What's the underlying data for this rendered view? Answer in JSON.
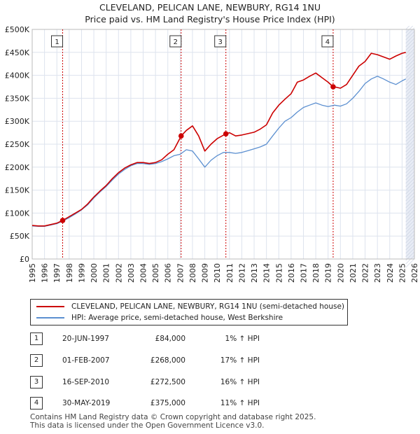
{
  "title_line1": "CLEVELAND, PELICAN LANE, NEWBURY, RG14 1NU",
  "title_line2": "Price paid vs. HM Land Registry's House Price Index (HPI)",
  "colors": {
    "property": "#cc0000",
    "hpi": "#5b8fd0",
    "sale_line": "#cc0000",
    "grid": "#dde3ee",
    "plot_bg": "#ffffff"
  },
  "chart_data": {
    "type": "line",
    "title": "CLEVELAND, PELICAN LANE, NEWBURY, RG14 1NU",
    "subtitle": "Price paid vs. HM Land Registry's House Price Index (HPI)",
    "xlabel": "",
    "ylabel": "",
    "xlim": [
      1995,
      2026
    ],
    "ylim": [
      0,
      500000
    ],
    "x_ticks": [
      1995,
      1996,
      1997,
      1998,
      1999,
      2000,
      2001,
      2002,
      2003,
      2004,
      2005,
      2006,
      2007,
      2008,
      2009,
      2010,
      2011,
      2012,
      2013,
      2014,
      2015,
      2016,
      2017,
      2018,
      2019,
      2020,
      2021,
      2022,
      2023,
      2024,
      2025,
      2026
    ],
    "y_ticks": [
      0,
      50000,
      100000,
      150000,
      200000,
      250000,
      300000,
      350000,
      400000,
      450000,
      500000
    ],
    "y_tick_labels": [
      "£0",
      "£50K",
      "£100K",
      "£150K",
      "£200K",
      "£250K",
      "£300K",
      "£350K",
      "£400K",
      "£450K",
      "£500K"
    ],
    "grid": true,
    "legend_position": "below",
    "series": [
      {
        "name": "CLEVELAND, PELICAN LANE, NEWBURY, RG14 1NU (semi-detached house)",
        "x": [
          1995.0,
          1995.5,
          1996.0,
          1996.5,
          1997.0,
          1997.47,
          1998.0,
          1998.5,
          1999.0,
          1999.5,
          2000.0,
          2000.5,
          2001.0,
          2001.5,
          2002.0,
          2002.5,
          2003.0,
          2003.5,
          2004.0,
          2004.5,
          2005.0,
          2005.5,
          2006.0,
          2006.5,
          2007.08,
          2007.5,
          2008.0,
          2008.5,
          2009.0,
          2009.5,
          2010.0,
          2010.71,
          2011.0,
          2011.5,
          2012.0,
          2012.5,
          2013.0,
          2013.5,
          2014.0,
          2014.5,
          2015.0,
          2015.5,
          2016.0,
          2016.5,
          2017.0,
          2017.5,
          2018.0,
          2018.5,
          2019.0,
          2019.41,
          2019.5,
          2020.0,
          2020.5,
          2021.0,
          2021.5,
          2022.0,
          2022.5,
          2023.0,
          2023.5,
          2024.0,
          2024.5,
          2025.0,
          2025.3
        ],
        "values": [
          73000,
          72000,
          72000,
          75000,
          78000,
          84000,
          92000,
          100000,
          108000,
          120000,
          135000,
          148000,
          160000,
          175000,
          188000,
          198000,
          205000,
          210000,
          210000,
          208000,
          210000,
          216000,
          228000,
          238000,
          268000,
          280000,
          290000,
          268000,
          235000,
          250000,
          262000,
          272500,
          275000,
          268000,
          270000,
          273000,
          276000,
          283000,
          292000,
          318000,
          335000,
          348000,
          360000,
          385000,
          390000,
          398000,
          405000,
          395000,
          385000,
          375000,
          375000,
          372000,
          380000,
          400000,
          420000,
          430000,
          448000,
          445000,
          440000,
          435000,
          442000,
          448000,
          450000
        ]
      },
      {
        "name": "HPI: Average price, semi-detached house, West Berkshire",
        "x": [
          1995.0,
          1995.5,
          1996.0,
          1996.5,
          1997.0,
          1997.5,
          1998.0,
          1998.5,
          1999.0,
          1999.5,
          2000.0,
          2000.5,
          2001.0,
          2001.5,
          2002.0,
          2002.5,
          2003.0,
          2003.5,
          2004.0,
          2004.5,
          2005.0,
          2005.5,
          2006.0,
          2006.5,
          2007.0,
          2007.5,
          2008.0,
          2008.5,
          2009.0,
          2009.5,
          2010.0,
          2010.5,
          2011.0,
          2011.5,
          2012.0,
          2012.5,
          2013.0,
          2013.5,
          2014.0,
          2014.5,
          2015.0,
          2015.5,
          2016.0,
          2016.5,
          2017.0,
          2017.5,
          2018.0,
          2018.5,
          2019.0,
          2019.5,
          2020.0,
          2020.5,
          2021.0,
          2021.5,
          2022.0,
          2022.5,
          2023.0,
          2023.5,
          2024.0,
          2024.5,
          2025.0,
          2025.3
        ],
        "values": [
          72000,
          71000,
          71000,
          74000,
          77000,
          83000,
          90000,
          98000,
          107000,
          118000,
          133000,
          146000,
          158000,
          172000,
          185000,
          195000,
          203000,
          208000,
          208000,
          206000,
          208000,
          212000,
          218000,
          225000,
          228000,
          238000,
          235000,
          218000,
          200000,
          215000,
          225000,
          232000,
          232000,
          230000,
          232000,
          236000,
          240000,
          244000,
          250000,
          268000,
          285000,
          300000,
          308000,
          320000,
          330000,
          335000,
          340000,
          335000,
          332000,
          335000,
          333000,
          338000,
          350000,
          365000,
          382000,
          392000,
          398000,
          392000,
          385000,
          380000,
          388000,
          392000
        ]
      }
    ],
    "sales": [
      {
        "n": "1",
        "x": 1997.47,
        "value": 84000
      },
      {
        "n": "2",
        "x": 2007.08,
        "value": 268000
      },
      {
        "n": "3",
        "x": 2010.71,
        "value": 272500
      },
      {
        "n": "4",
        "x": 2019.41,
        "value": 375000
      }
    ],
    "annotations": [
      "1",
      "2",
      "3",
      "4"
    ],
    "shaded_future_from": 2025.3
  },
  "legend": {
    "property_label": "CLEVELAND, PELICAN LANE, NEWBURY, RG14 1NU (semi-detached house)",
    "hpi_label": "HPI: Average price, semi-detached house, West Berkshire"
  },
  "sales_table": [
    {
      "n": "1",
      "date": "20-JUN-1997",
      "price": "£84,000",
      "hpi": "1% ↑ HPI"
    },
    {
      "n": "2",
      "date": "01-FEB-2007",
      "price": "£268,000",
      "hpi": "17% ↑ HPI"
    },
    {
      "n": "3",
      "date": "16-SEP-2010",
      "price": "£272,500",
      "hpi": "16% ↑ HPI"
    },
    {
      "n": "4",
      "date": "30-MAY-2019",
      "price": "£375,000",
      "hpi": "11% ↑ HPI"
    }
  ],
  "footer_line1": "Contains HM Land Registry data © Crown copyright and database right 2025.",
  "footer_line2": "This data is licensed under the Open Government Licence v3.0."
}
